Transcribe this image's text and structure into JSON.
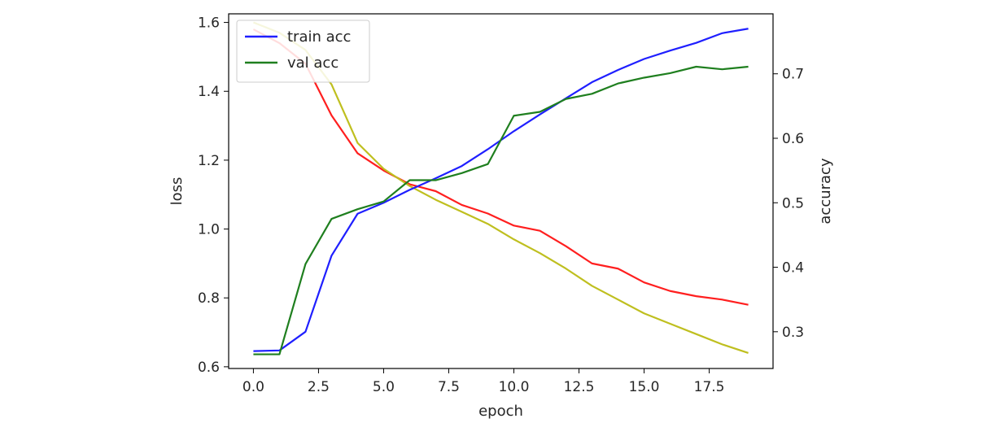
{
  "chart_data": {
    "type": "line",
    "title": "",
    "xlabel": "epoch",
    "ylabel_left": "loss",
    "ylabel_right": "accuracy",
    "xlim": [
      -0.95,
      19.95
    ],
    "ylim_left": [
      0.595,
      1.625
    ],
    "ylim_right": [
      0.243,
      0.793
    ],
    "grid": false,
    "legend_position": "top-left",
    "x_ticks": [
      "0.0",
      "2.5",
      "5.0",
      "7.5",
      "10.0",
      "12.5",
      "15.0",
      "17.5"
    ],
    "x_tick_values": [
      0,
      2.5,
      5,
      7.5,
      10,
      12.5,
      15,
      17.5
    ],
    "y_left_ticks": [
      "0.6",
      "0.8",
      "1.0",
      "1.2",
      "1.4",
      "1.6"
    ],
    "y_left_tick_values": [
      0.6,
      0.8,
      1.0,
      1.2,
      1.4,
      1.6
    ],
    "y_right_ticks": [
      "0.3",
      "0.4",
      "0.5",
      "0.6",
      "0.7"
    ],
    "y_right_tick_values": [
      0.3,
      0.4,
      0.5,
      0.6,
      0.7
    ],
    "x": [
      0,
      1,
      2,
      3,
      4,
      5,
      6,
      7,
      8,
      9,
      10,
      11,
      12,
      13,
      14,
      15,
      16,
      17,
      18,
      19
    ],
    "series": [
      {
        "name": "train acc",
        "axis": "right",
        "color": "#1f1fff",
        "values": [
          0.27,
          0.271,
          0.3,
          0.418,
          0.483,
          0.5,
          0.52,
          0.538,
          0.557,
          0.583,
          0.611,
          0.637,
          0.662,
          0.687,
          0.706,
          0.723,
          0.736,
          0.748,
          0.763,
          0.77
        ]
      },
      {
        "name": "val acc",
        "axis": "right",
        "color": "#1f7f1f",
        "values": [
          0.265,
          0.265,
          0.405,
          0.475,
          0.49,
          0.502,
          0.535,
          0.535,
          0.546,
          0.56,
          0.635,
          0.641,
          0.661,
          0.669,
          0.685,
          0.694,
          0.701,
          0.711,
          0.707,
          0.711
        ]
      },
      {
        "name": "",
        "axis": "left",
        "color": "#ff1f1f",
        "values": [
          1.58,
          1.54,
          1.48,
          1.33,
          1.22,
          1.17,
          1.13,
          1.11,
          1.07,
          1.045,
          1.01,
          0.995,
          0.95,
          0.9,
          0.885,
          0.845,
          0.82,
          0.805,
          0.795,
          0.78
        ]
      },
      {
        "name": "",
        "axis": "left",
        "color": "#bfbf1f",
        "values": [
          1.6,
          1.57,
          1.52,
          1.42,
          1.25,
          1.175,
          1.125,
          1.085,
          1.05,
          1.015,
          0.97,
          0.93,
          0.885,
          0.835,
          0.795,
          0.755,
          0.725,
          0.695,
          0.665,
          0.64
        ]
      }
    ]
  }
}
